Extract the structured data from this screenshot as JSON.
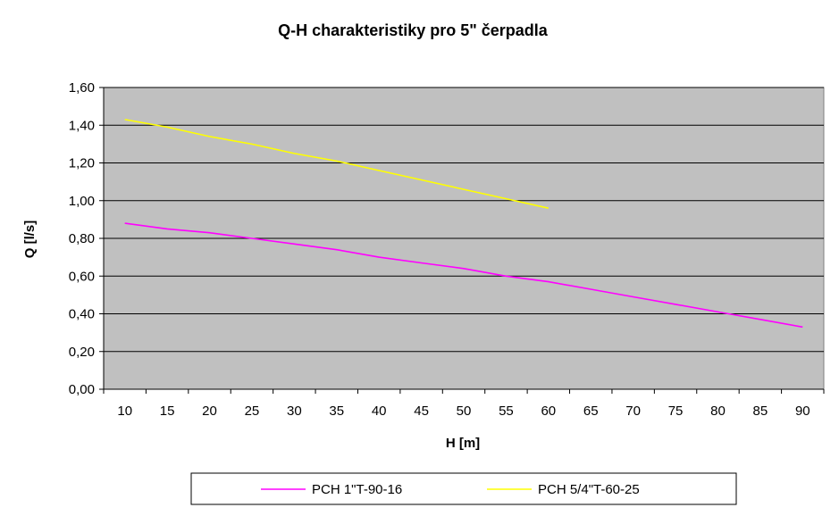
{
  "chart_data": {
    "type": "line",
    "title": "Q-H charakteristiky pro 5\" čerpadla",
    "xlabel": "H [m]",
    "ylabel": "Q [l/s]",
    "xlim": [
      10,
      90
    ],
    "ylim": [
      0,
      1.6
    ],
    "x_ticks": [
      "10",
      "15",
      "20",
      "25",
      "30",
      "35",
      "40",
      "45",
      "50",
      "55",
      "60",
      "65",
      "70",
      "75",
      "80",
      "85",
      "90"
    ],
    "y_ticks": [
      "0,00",
      "0,20",
      "0,40",
      "0,60",
      "0,80",
      "1,00",
      "1,20",
      "1,40",
      "1,60"
    ],
    "grid": true,
    "legend_position": "bottom",
    "plot_background": "#c0c0c0",
    "series": [
      {
        "name": "PCH 1\"T-90-16",
        "color": "#ff00ff",
        "points": [
          [
            10,
            0.88
          ],
          [
            15,
            0.85
          ],
          [
            20,
            0.83
          ],
          [
            25,
            0.8
          ],
          [
            30,
            0.77
          ],
          [
            35,
            0.74
          ],
          [
            40,
            0.7
          ],
          [
            45,
            0.67
          ],
          [
            50,
            0.64
          ],
          [
            55,
            0.6
          ],
          [
            60,
            0.57
          ],
          [
            65,
            0.53
          ],
          [
            70,
            0.49
          ],
          [
            75,
            0.45
          ],
          [
            80,
            0.41
          ],
          [
            85,
            0.37
          ],
          [
            90,
            0.33
          ]
        ]
      },
      {
        "name": "PCH 5/4\"T-60-25",
        "color": "#ffff00",
        "points": [
          [
            10,
            1.43
          ],
          [
            15,
            1.39
          ],
          [
            20,
            1.34
          ],
          [
            25,
            1.3
          ],
          [
            30,
            1.25
          ],
          [
            35,
            1.21
          ],
          [
            40,
            1.16
          ],
          [
            45,
            1.11
          ],
          [
            50,
            1.06
          ],
          [
            55,
            1.01
          ],
          [
            60,
            0.96
          ]
        ]
      }
    ]
  }
}
